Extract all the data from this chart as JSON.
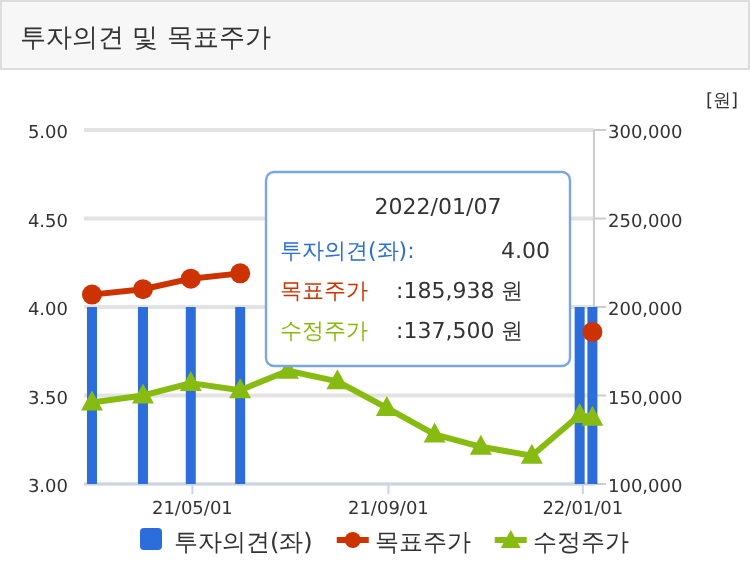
{
  "chart_data": {
    "type": "bar",
    "title": "투자의견 및 목표주가",
    "y2label": "[원]",
    "x": [
      "2021-02-27",
      "2021-03-31",
      "2021-04-30",
      "2021-05-31",
      "2021-06-30",
      "2021-07-31",
      "2021-08-31",
      "2021-09-30",
      "2021-10-29",
      "2021-11-30",
      "2021-12-30",
      "2022-01-07"
    ],
    "xlim": [
      "2021-02-22",
      "2022-01-08"
    ],
    "xticks": [
      {
        "value": "2021-05-01",
        "label": "21/05/01"
      },
      {
        "value": "2021-09-01",
        "label": "21/09/01"
      },
      {
        "value": "2022-01-01",
        "label": "22/01/01"
      }
    ],
    "ylim": [
      3,
      5
    ],
    "yticks": [
      {
        "value": 3,
        "label": "3.00"
      },
      {
        "value": 3.5,
        "label": "3.50"
      },
      {
        "value": 4,
        "label": "4.00"
      },
      {
        "value": 4.5,
        "label": "4.50"
      },
      {
        "value": 5,
        "label": "5.00"
      }
    ],
    "y2lim": [
      100000,
      300000
    ],
    "y2ticks": [
      {
        "value": 100000,
        "label": "100,000"
      },
      {
        "value": 150000,
        "label": "150,000"
      },
      {
        "value": 200000,
        "label": "200,000"
      },
      {
        "value": 250000,
        "label": "250,000"
      },
      {
        "value": 300000,
        "label": "300,000"
      }
    ],
    "series": [
      {
        "name": "투자의견(좌)",
        "color": "#2a6ddb",
        "values": [
          4,
          4,
          4,
          4,
          null,
          null,
          null,
          null,
          null,
          null,
          4,
          4
        ]
      },
      {
        "name": "목표주가",
        "type": "line",
        "axis": "y2",
        "marker": "circle",
        "color": "#cc3300",
        "values": [
          207000,
          210000,
          216000,
          219000,
          null,
          null,
          null,
          null,
          null,
          null,
          null,
          185938
        ]
      },
      {
        "name": "수정주가",
        "type": "line",
        "axis": "y2",
        "marker": "triangle",
        "color": "#88bb11",
        "values": [
          146000,
          150000,
          157000,
          153000,
          164000,
          158000,
          143000,
          128000,
          121000,
          116000,
          139000,
          137500
        ]
      }
    ],
    "annotations": [
      "2022/01/07",
      "투자의견(좌):",
      "4.00",
      "목표주가",
      ":185,938 원",
      "수정주가",
      ":137,500 원"
    ],
    "grid": "y",
    "legend": "bottom"
  }
}
